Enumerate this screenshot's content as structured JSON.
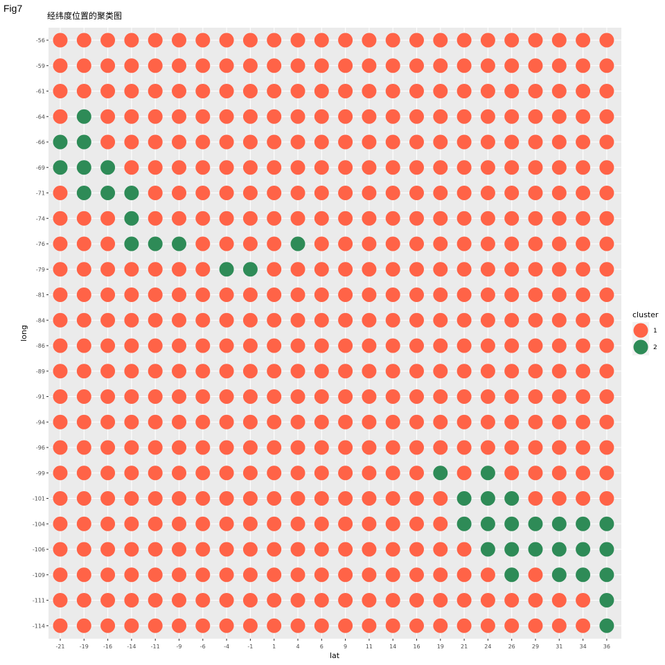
{
  "figure_label": "Fig7",
  "chart_data": {
    "type": "scatter",
    "title": "经纬度位置的聚类图",
    "xlabel": "lat",
    "ylabel": "long",
    "x_ticks": [
      "-21",
      "-19",
      "-16",
      "-14",
      "-11",
      "-9",
      "-6",
      "-4",
      "-1",
      "1",
      "4",
      "6",
      "9",
      "11",
      "14",
      "16",
      "19",
      "21",
      "24",
      "26",
      "29",
      "31",
      "34",
      "36"
    ],
    "y_ticks": [
      "-56",
      "-59",
      "-61",
      "-64",
      "-66",
      "-69",
      "-71",
      "-74",
      "-76",
      "-79",
      "-81",
      "-84",
      "-86",
      "-89",
      "-91",
      "-94",
      "-96",
      "-99",
      "-101",
      "-104",
      "-106",
      "-109",
      "-111",
      "-114"
    ],
    "grid": true,
    "default_cluster": "1",
    "cluster2_points": [
      {
        "lat": "-19",
        "long": "-64"
      },
      {
        "lat": "-21",
        "long": "-66"
      },
      {
        "lat": "-19",
        "long": "-66"
      },
      {
        "lat": "-21",
        "long": "-69"
      },
      {
        "lat": "-19",
        "long": "-69"
      },
      {
        "lat": "-16",
        "long": "-69"
      },
      {
        "lat": "-19",
        "long": "-71"
      },
      {
        "lat": "-16",
        "long": "-71"
      },
      {
        "lat": "-14",
        "long": "-71"
      },
      {
        "lat": "-14",
        "long": "-74"
      },
      {
        "lat": "-14",
        "long": "-76"
      },
      {
        "lat": "-11",
        "long": "-76"
      },
      {
        "lat": "-9",
        "long": "-76"
      },
      {
        "lat": "4",
        "long": "-76"
      },
      {
        "lat": "-4",
        "long": "-79"
      },
      {
        "lat": "-1",
        "long": "-79"
      },
      {
        "lat": "19",
        "long": "-99"
      },
      {
        "lat": "24",
        "long": "-99"
      },
      {
        "lat": "21",
        "long": "-101"
      },
      {
        "lat": "24",
        "long": "-101"
      },
      {
        "lat": "26",
        "long": "-101"
      },
      {
        "lat": "21",
        "long": "-104"
      },
      {
        "lat": "24",
        "long": "-104"
      },
      {
        "lat": "26",
        "long": "-104"
      },
      {
        "lat": "29",
        "long": "-104"
      },
      {
        "lat": "31",
        "long": "-104"
      },
      {
        "lat": "34",
        "long": "-104"
      },
      {
        "lat": "36",
        "long": "-104"
      },
      {
        "lat": "24",
        "long": "-106"
      },
      {
        "lat": "26",
        "long": "-106"
      },
      {
        "lat": "29",
        "long": "-106"
      },
      {
        "lat": "31",
        "long": "-106"
      },
      {
        "lat": "34",
        "long": "-106"
      },
      {
        "lat": "36",
        "long": "-106"
      },
      {
        "lat": "26",
        "long": "-109"
      },
      {
        "lat": "31",
        "long": "-109"
      },
      {
        "lat": "34",
        "long": "-109"
      },
      {
        "lat": "36",
        "long": "-109"
      },
      {
        "lat": "36",
        "long": "-111"
      },
      {
        "lat": "36",
        "long": "-114"
      }
    ],
    "legend": {
      "title": "cluster",
      "position": "right",
      "items": [
        {
          "label": "1",
          "color": "#FF6347"
        },
        {
          "label": "2",
          "color": "#2E8B57"
        }
      ]
    },
    "panel_background": "#EBEBEB",
    "grid_color": "#FFFFFF"
  }
}
